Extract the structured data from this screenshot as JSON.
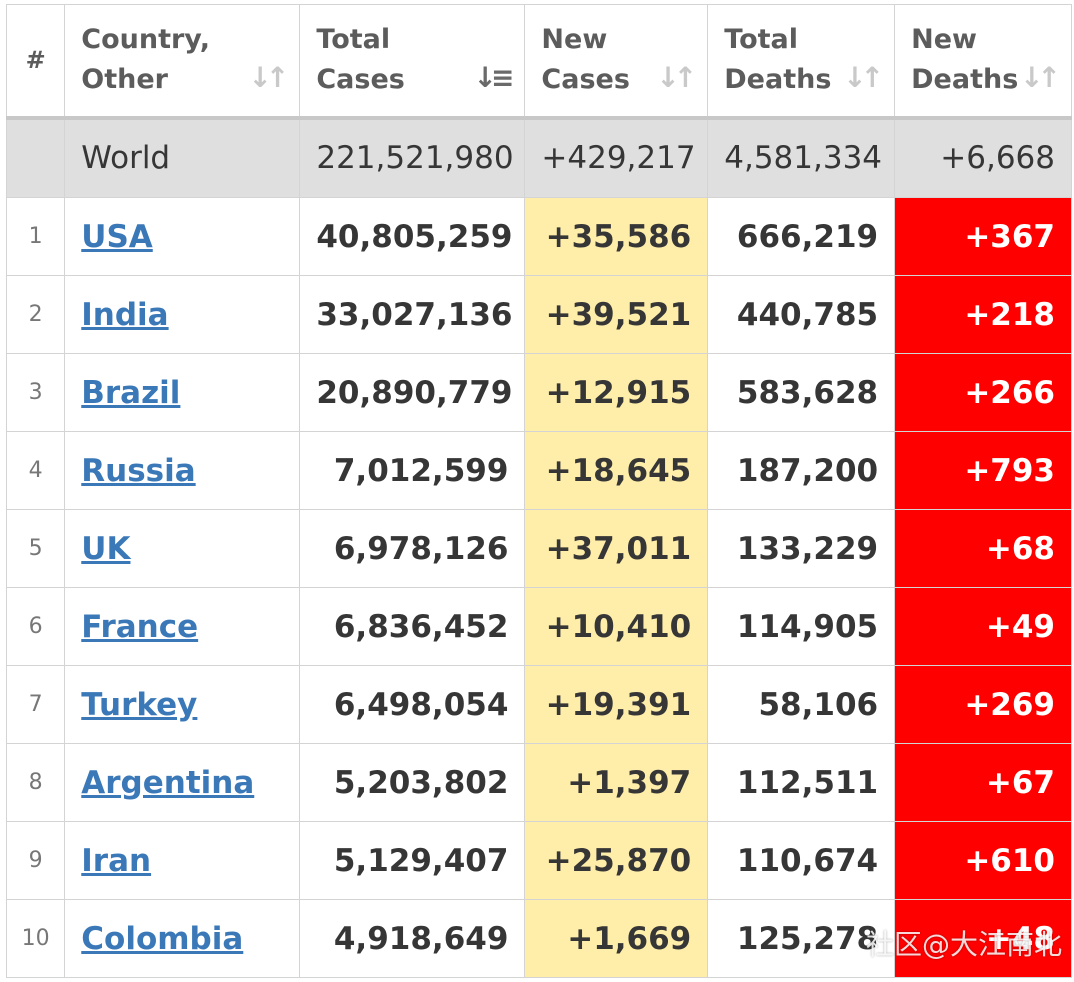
{
  "headers": {
    "rank": "#",
    "country": [
      "Country,",
      "Other"
    ],
    "total_cases": [
      "Total",
      "Cases"
    ],
    "new_cases": [
      "New",
      "Cases"
    ],
    "total_deaths": [
      "Total",
      "Deaths"
    ],
    "new_deaths": [
      "New",
      "Deaths"
    ],
    "sort_icons": {
      "country": "sort-both-icon",
      "total_cases": "sort-descending-icon",
      "new_cases": "sort-both-icon",
      "total_deaths": "sort-both-icon",
      "new_deaths": "sort-both-icon"
    }
  },
  "world": {
    "country": "World",
    "total_cases": "221,521,980",
    "new_cases": "+429,217",
    "total_deaths": "4,581,334",
    "new_deaths": "+6,668"
  },
  "rows": [
    {
      "rank": "1",
      "country": "USA",
      "total_cases": "40,805,259",
      "new_cases": "+35,586",
      "total_deaths": "666,219",
      "new_deaths": "+367"
    },
    {
      "rank": "2",
      "country": "India",
      "total_cases": "33,027,136",
      "new_cases": "+39,521",
      "total_deaths": "440,785",
      "new_deaths": "+218"
    },
    {
      "rank": "3",
      "country": "Brazil",
      "total_cases": "20,890,779",
      "new_cases": "+12,915",
      "total_deaths": "583,628",
      "new_deaths": "+266"
    },
    {
      "rank": "4",
      "country": "Russia",
      "total_cases": "7,012,599",
      "new_cases": "+18,645",
      "total_deaths": "187,200",
      "new_deaths": "+793"
    },
    {
      "rank": "5",
      "country": "UK",
      "total_cases": "6,978,126",
      "new_cases": "+37,011",
      "total_deaths": "133,229",
      "new_deaths": "+68"
    },
    {
      "rank": "6",
      "country": "France",
      "total_cases": "6,836,452",
      "new_cases": "+10,410",
      "total_deaths": "114,905",
      "new_deaths": "+49"
    },
    {
      "rank": "7",
      "country": "Turkey",
      "total_cases": "6,498,054",
      "new_cases": "+19,391",
      "total_deaths": "58,106",
      "new_deaths": "+269"
    },
    {
      "rank": "8",
      "country": "Argentina",
      "total_cases": "5,203,802",
      "new_cases": "+1,397",
      "total_deaths": "112,511",
      "new_deaths": "+67"
    },
    {
      "rank": "9",
      "country": "Iran",
      "total_cases": "5,129,407",
      "new_cases": "+25,870",
      "total_deaths": "110,674",
      "new_deaths": "+610"
    },
    {
      "rank": "10",
      "country": "Colombia",
      "total_cases": "4,918,649",
      "new_cases": "+1,669",
      "total_deaths": "125,278",
      "new_deaths": "+48"
    }
  ],
  "watermark": "社区@大江南北",
  "colors": {
    "new_cases_bg": "#ffeeaa",
    "new_deaths_bg": "#ff0000",
    "link": "#3a78b8",
    "world_bg": "#dfdfdf"
  }
}
